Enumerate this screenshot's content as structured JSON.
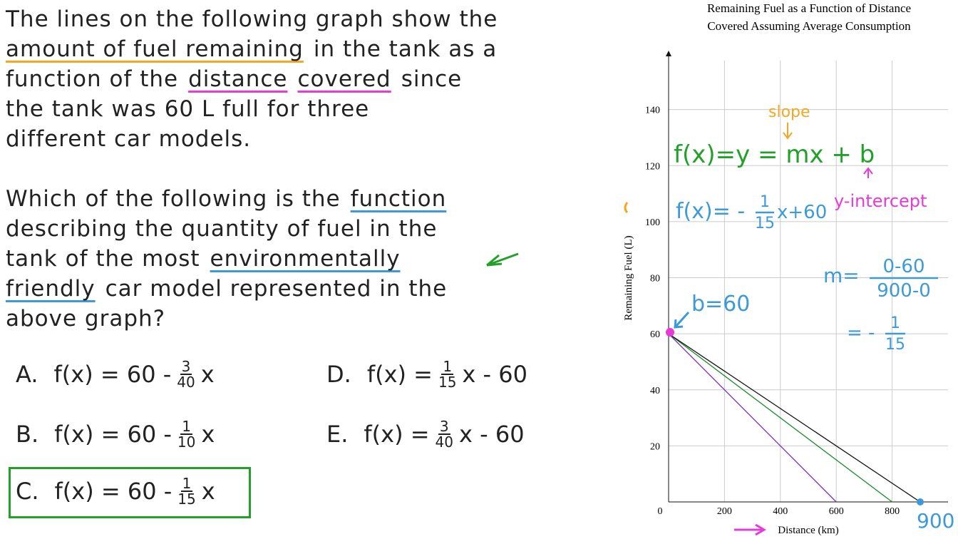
{
  "question": {
    "paragraphs": [
      [
        [
          {
            "t": "The lines on the following graph show the"
          }
        ],
        [
          {
            "t": "amount of fuel remaining",
            "u": "#f5a623"
          },
          {
            "t": "in the tank as a"
          }
        ],
        [
          {
            "t": "function of the"
          },
          {
            "t": "distance",
            "u": "#e83ad6"
          },
          {
            "t": "covered",
            "u": "#e83ad6"
          },
          {
            "t": "since"
          }
        ],
        [
          {
            "t": "the tank was 60 L full for three"
          }
        ],
        [
          {
            "t": "different car models."
          }
        ]
      ],
      [
        [
          {
            "t": "Which of the following is the"
          },
          {
            "t": "function",
            "u": "#3d9ad9"
          }
        ],
        [
          {
            "t": "describing the quantity of fuel in the"
          }
        ],
        [
          {
            "t": "tank of the most"
          },
          {
            "t": "environmentally",
            "u": "#3d9ad9"
          }
        ],
        [
          {
            "t": "friendly",
            "u": "#3d9ad9"
          },
          {
            "t": "car model represented in the"
          }
        ],
        [
          {
            "t": "above graph?"
          }
        ]
      ]
    ],
    "options": [
      {
        "letter": "A.",
        "pre": "f(x) = 60 -",
        "num": "3",
        "den": "40",
        "post": "x"
      },
      {
        "letter": "B.",
        "pre": "f(x) = 60 -",
        "num": "1",
        "den": "10",
        "post": "x"
      },
      {
        "letter": "C.",
        "pre": "f(x) = 60 -",
        "num": "1",
        "den": "15",
        "post": "x"
      },
      {
        "letter": "D.",
        "pre": "f(x) =",
        "num": "1",
        "den": "15",
        "post": "x - 60"
      },
      {
        "letter": "E.",
        "pre": "f(x) =",
        "num": "3",
        "den": "40",
        "post": "x - 60"
      }
    ]
  },
  "chart_data": {
    "type": "line",
    "title": [
      "Remaining Fuel as a Function of Distance",
      "Covered Assuming Average Consumption"
    ],
    "x_label": "Distance (km)",
    "y_label": "Remaining Fuel (L)",
    "xlim": [
      0,
      1000
    ],
    "ylim": [
      0,
      160
    ],
    "xticks": [
      0,
      200,
      400,
      600,
      800
    ],
    "yticks": [
      20,
      40,
      60,
      80,
      100,
      120,
      140
    ],
    "grid": true,
    "series": [
      {
        "color": "#7b2fbf",
        "x": [
          0,
          600
        ],
        "values": [
          60,
          0
        ]
      },
      {
        "color": "#1a8a2a",
        "x": [
          0,
          800
        ],
        "values": [
          60,
          0
        ]
      },
      {
        "color": "#111111",
        "x": [
          0,
          900
        ],
        "values": [
          60,
          0
        ]
      }
    ],
    "annotations": {
      "slope": "slope",
      "general_form": "f(x)=y = mx + b",
      "intercept_label": "y-intercept",
      "function": {
        "pre": "f(x)= -",
        "num": "1",
        "den": "15",
        "post": "x+60"
      },
      "slope_calc": {
        "pre": "m=",
        "num": "0-60",
        "den": "900-0"
      },
      "slope_result": {
        "pre": "= -",
        "num": "1",
        "den": "15"
      },
      "intercept": "b=60",
      "end": "900"
    }
  }
}
